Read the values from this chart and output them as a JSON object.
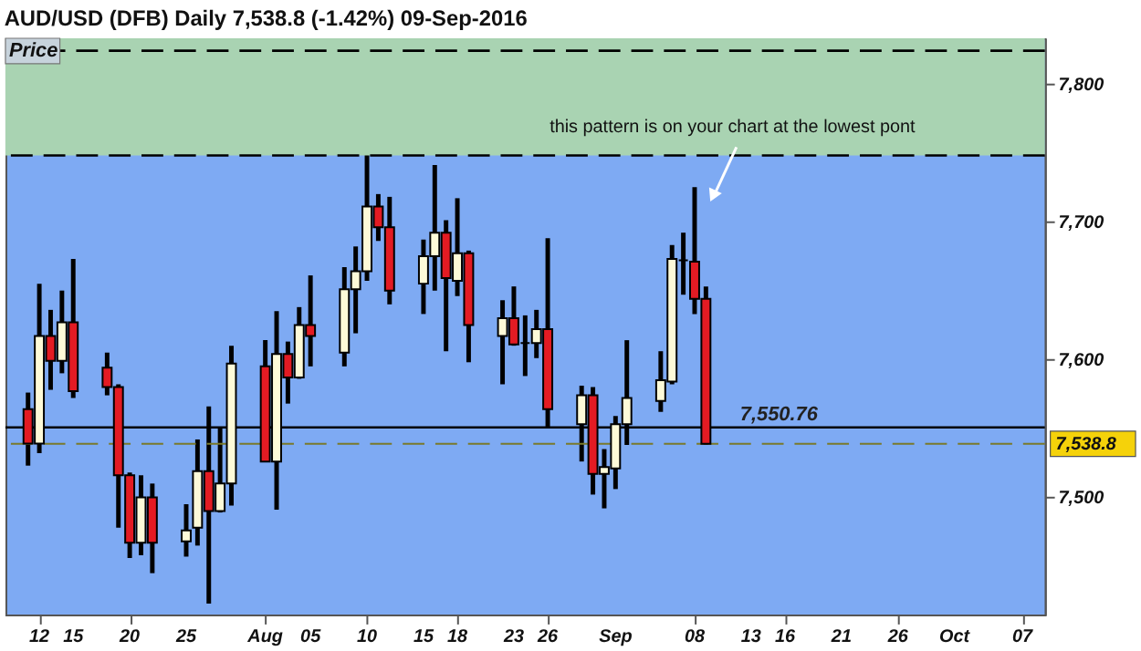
{
  "chart_data": {
    "type": "candlestick",
    "title": "AUD/USD (DFB)   Daily   7,538.8 (-1.42%)   09-Sep-2016",
    "ylabel": "Price",
    "x": [
      "2016-07-11",
      "2016-07-12",
      "2016-07-13",
      "2016-07-14",
      "2016-07-15",
      "2016-07-18",
      "2016-07-19",
      "2016-07-20",
      "2016-07-21",
      "2016-07-22",
      "2016-07-25",
      "2016-07-26",
      "2016-07-27",
      "2016-07-28",
      "2016-07-29",
      "2016-08-01",
      "2016-08-02",
      "2016-08-03",
      "2016-08-04",
      "2016-08-05",
      "2016-08-08",
      "2016-08-09",
      "2016-08-10",
      "2016-08-11",
      "2016-08-12",
      "2016-08-15",
      "2016-08-16",
      "2016-08-17",
      "2016-08-18",
      "2016-08-19",
      "2016-08-22",
      "2016-08-23",
      "2016-08-24",
      "2016-08-25",
      "2016-08-26",
      "2016-08-29",
      "2016-08-30",
      "2016-08-31",
      "2016-09-01",
      "2016-09-02",
      "2016-09-05",
      "2016-09-06",
      "2016-09-07",
      "2016-09-08",
      "2016-09-09"
    ],
    "ohlc": [
      [
        7564,
        7576,
        7523,
        7539
      ],
      [
        7539,
        7655,
        7532,
        7617
      ],
      [
        7617,
        7636,
        7578,
        7599
      ],
      [
        7599,
        7650,
        7590,
        7627
      ],
      [
        7627,
        7673,
        7572,
        7577
      ],
      [
        7594,
        7605,
        7574,
        7580
      ],
      [
        7580,
        7582,
        7478,
        7516
      ],
      [
        7516,
        7518,
        7456,
        7467
      ],
      [
        7467,
        7516,
        7458,
        7500
      ],
      [
        7500,
        7510,
        7445,
        7467
      ],
      [
        7468,
        7495,
        7457,
        7476
      ],
      [
        7478,
        7542,
        7465,
        7519
      ],
      [
        7519,
        7566,
        7423,
        7490
      ],
      [
        7490,
        7551,
        7489,
        7510
      ],
      [
        7510,
        7610,
        7494,
        7597
      ],
      [
        7595,
        7614,
        7526,
        7526
      ],
      [
        7526,
        7635,
        7491,
        7604
      ],
      [
        7604,
        7613,
        7568,
        7587
      ],
      [
        7587,
        7638,
        7586,
        7625
      ],
      [
        7625,
        7661,
        7595,
        7617
      ],
      [
        7605,
        7667,
        7595,
        7651
      ],
      [
        7651,
        7682,
        7619,
        7664
      ],
      [
        7664,
        7751,
        7657,
        7711
      ],
      [
        7711,
        7720,
        7686,
        7696
      ],
      [
        7696,
        7718,
        7640,
        7650
      ],
      [
        7655,
        7687,
        7633,
        7675
      ],
      [
        7675,
        7741,
        7650,
        7692
      ],
      [
        7692,
        7701,
        7606,
        7659
      ],
      [
        7657,
        7717,
        7646,
        7677
      ],
      [
        7677,
        7679,
        7598,
        7625
      ],
      [
        7617,
        7643,
        7582,
        7630
      ],
      [
        7630,
        7653,
        7610,
        7611
      ],
      [
        7612,
        7632,
        7588,
        7612
      ],
      [
        7612,
        7636,
        7601,
        7622
      ],
      [
        7622,
        7688,
        7551,
        7564
      ],
      [
        7553,
        7581,
        7526,
        7574
      ],
      [
        7574,
        7580,
        7502,
        7517
      ],
      [
        7517,
        7535,
        7492,
        7522
      ],
      [
        7521,
        7559,
        7506,
        7553
      ],
      [
        7553,
        7614,
        7538,
        7572
      ],
      [
        7570,
        7606,
        7562,
        7585
      ],
      [
        7584,
        7683,
        7582,
        7673
      ],
      [
        7672,
        7692,
        7647,
        7672
      ],
      [
        7671,
        7725,
        7633,
        7644
      ],
      [
        7644,
        7653,
        7538,
        7538.8
      ]
    ],
    "colors": [
      "#e31b23",
      "#fdfad8",
      "#e31b23",
      "#fdfad8",
      "#e31b23",
      "#e31b23",
      "#e31b23",
      "#e31b23",
      "#fdfad8",
      "#e31b23",
      "#fdfad8",
      "#fdfad8",
      "#e31b23",
      "#fdfad8",
      "#fdfad8",
      "#e31b23",
      "#fdfad8",
      "#e31b23",
      "#fdfad8",
      "#e31b23",
      "#fdfad8",
      "#fdfad8",
      "#fdfad8",
      "#e31b23",
      "#e31b23",
      "#fdfad8",
      "#fdfad8",
      "#e31b23",
      "#fdfad8",
      "#e31b23",
      "#fdfad8",
      "#e31b23",
      "#000000",
      "#fdfad8",
      "#e31b23",
      "#fdfad8",
      "#e31b23",
      "#fdfad8",
      "#fdfad8",
      "#fdfad8",
      "#fdfad8",
      "#fdfad8",
      "#000000",
      "#e31b23",
      "#e31b23"
    ],
    "xlim": [
      "2016-07-09",
      "2016-10-09"
    ],
    "xticks": [
      {
        "value": "2016-07-12",
        "label": "12"
      },
      {
        "value": "2016-07-15",
        "label": "15"
      },
      {
        "value": "2016-07-20",
        "label": "20"
      },
      {
        "value": "2016-07-25",
        "label": "25"
      },
      {
        "value": "2016-08-01",
        "label": "Aug"
      },
      {
        "value": "2016-08-05",
        "label": "05"
      },
      {
        "value": "2016-08-10",
        "label": "10"
      },
      {
        "value": "2016-08-15",
        "label": "15"
      },
      {
        "value": "2016-08-18",
        "label": "18"
      },
      {
        "value": "2016-08-23",
        "label": "23"
      },
      {
        "value": "2016-08-26",
        "label": "26"
      },
      {
        "value": "2016-09-01",
        "label": "Sep"
      },
      {
        "value": "2016-09-08",
        "label": "08"
      },
      {
        "value": "2016-09-13",
        "label": "13"
      },
      {
        "value": "2016-09-16",
        "label": "16"
      },
      {
        "value": "2016-09-21",
        "label": "21"
      },
      {
        "value": "2016-09-26",
        "label": "26"
      },
      {
        "value": "2016-10-01",
        "label": "Oct"
      },
      {
        "value": "2016-10-07",
        "label": "07"
      }
    ],
    "ylim": [
      7415,
      7833
    ],
    "yticks": [
      {
        "value": 7500,
        "label": "7,500"
      },
      {
        "value": 7600,
        "label": "7,600"
      },
      {
        "value": 7700,
        "label": "7,700"
      },
      {
        "value": 7800,
        "label": "7,800"
      }
    ],
    "bands": [
      {
        "axis": "y",
        "from": 7748,
        "to": 7833,
        "color": "#a9d3b2"
      }
    ],
    "ref_lines": [
      {
        "axis": "y",
        "value": 7824,
        "line_style": "dashed",
        "color": "#000000"
      },
      {
        "axis": "y",
        "value": 7748,
        "line_style": "dashed",
        "color": "#000000"
      },
      {
        "axis": "y",
        "value": 7550.76,
        "label": "7,550.76",
        "line_style": "solid",
        "color": "#000000"
      },
      {
        "axis": "y",
        "value": 7538.8,
        "label": "7,538.8",
        "line_style": "dashed",
        "color": "#7a7a2a"
      }
    ],
    "annotations": [
      "this pattern is on your chart at the lowest pont"
    ]
  }
}
